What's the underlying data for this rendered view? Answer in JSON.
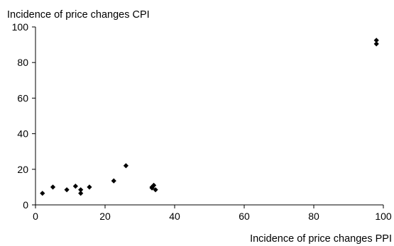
{
  "chart_data": {
    "type": "scatter",
    "title": "",
    "xlabel": "Incidence of price changes PPI",
    "ylabel": "Incidence of price changes CPI",
    "xlim": [
      0,
      100
    ],
    "ylim": [
      0,
      100
    ],
    "x_ticks": [
      "0",
      "20",
      "40",
      "60",
      "80",
      "100"
    ],
    "y_ticks": [
      "0",
      "20",
      "40",
      "60",
      "80",
      "100"
    ],
    "grid": false,
    "legend": "none",
    "marker": "diamond",
    "marker_color": "#000000",
    "series": [
      {
        "x": [
          2,
          5,
          9,
          11.5,
          13,
          13,
          15.5,
          22.5,
          26,
          33.5,
          34,
          33.5,
          34.5,
          98,
          98
        ],
        "y": [
          6.5,
          10,
          8.5,
          10.5,
          8.5,
          6.5,
          10,
          13.5,
          22,
          10,
          11,
          9.5,
          8.5,
          92.5,
          90.5
        ]
      }
    ]
  }
}
